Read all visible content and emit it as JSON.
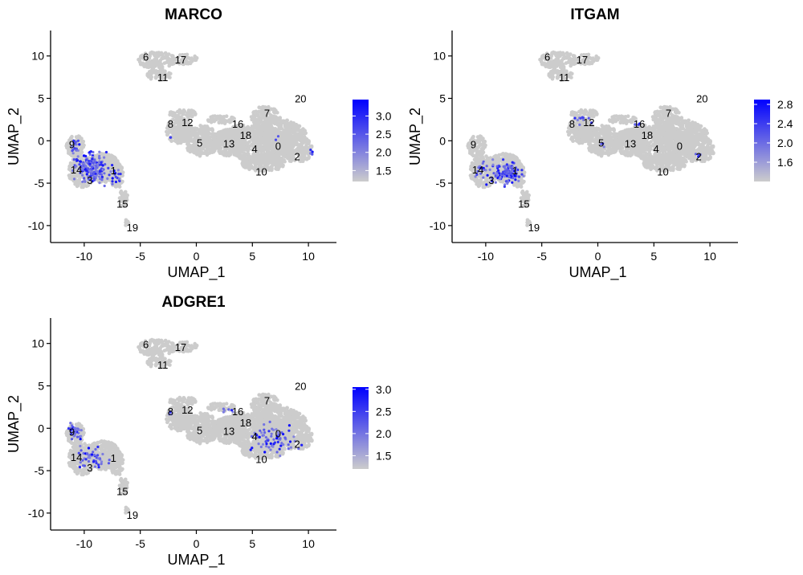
{
  "colors": {
    "low": "#cccccc",
    "high": "#0000ff",
    "axis": "#000000",
    "background": "#ffffff"
  },
  "chart_data": [
    {
      "type": "scatter",
      "title": "MARCO",
      "xlabel": "UMAP_1",
      "ylabel": "UMAP_2",
      "xlim": [
        -13,
        12.5
      ],
      "ylim": [
        -12,
        13
      ],
      "xticks": [
        -10,
        -5,
        0,
        5,
        10
      ],
      "yticks": [
        -10,
        -5,
        0,
        5,
        10
      ],
      "colorbar": {
        "min": 1.2,
        "max": 3.45,
        "ticks": [
          1.5,
          2.0,
          2.5,
          3.0
        ]
      },
      "cluster_labels": [
        {
          "label": "6",
          "x": -4.5,
          "y": 9.9
        },
        {
          "label": "17",
          "x": -1.4,
          "y": 9.6
        },
        {
          "label": "11",
          "x": -3.0,
          "y": 7.5
        },
        {
          "label": "20",
          "x": 9.3,
          "y": 5.0
        },
        {
          "label": "7",
          "x": 6.3,
          "y": 3.3
        },
        {
          "label": "8",
          "x": -2.3,
          "y": 2.0
        },
        {
          "label": "12",
          "x": -0.8,
          "y": 2.2
        },
        {
          "label": "16",
          "x": 3.7,
          "y": 2.0
        },
        {
          "label": "18",
          "x": 4.4,
          "y": 0.7
        },
        {
          "label": "5",
          "x": 0.3,
          "y": -0.2
        },
        {
          "label": "13",
          "x": 2.9,
          "y": -0.3
        },
        {
          "label": "4",
          "x": 5.2,
          "y": -0.9
        },
        {
          "label": "0",
          "x": 7.3,
          "y": -0.6
        },
        {
          "label": "2",
          "x": 9.0,
          "y": -1.8
        },
        {
          "label": "10",
          "x": 5.8,
          "y": -3.6
        },
        {
          "label": "9",
          "x": -11.1,
          "y": -0.4
        },
        {
          "label": "14",
          "x": -10.7,
          "y": -3.4
        },
        {
          "label": "3",
          "x": -9.5,
          "y": -4.6
        },
        {
          "label": "1",
          "x": -7.4,
          "y": -3.5
        },
        {
          "label": "15",
          "x": -6.6,
          "y": -7.4
        },
        {
          "label": "19",
          "x": -5.7,
          "y": -10.2
        }
      ]
    },
    {
      "type": "scatter",
      "title": "ITGAM",
      "xlabel": "UMAP_1",
      "ylabel": "UMAP_2",
      "xlim": [
        -13,
        12.5
      ],
      "ylim": [
        -12,
        13
      ],
      "xticks": [
        -10,
        -5,
        0,
        5,
        10
      ],
      "yticks": [
        -10,
        -5,
        0,
        5,
        10
      ],
      "colorbar": {
        "min": 1.2,
        "max": 2.9,
        "ticks": [
          1.6,
          2.0,
          2.4,
          2.8
        ]
      },
      "cluster_labels": [
        {
          "label": "6",
          "x": -4.5,
          "y": 9.9
        },
        {
          "label": "17",
          "x": -1.4,
          "y": 9.6
        },
        {
          "label": "11",
          "x": -3.0,
          "y": 7.5
        },
        {
          "label": "20",
          "x": 9.3,
          "y": 5.0
        },
        {
          "label": "7",
          "x": 6.3,
          "y": 3.3
        },
        {
          "label": "8",
          "x": -2.3,
          "y": 2.0
        },
        {
          "label": "12",
          "x": -0.8,
          "y": 2.2
        },
        {
          "label": "16",
          "x": 3.7,
          "y": 2.0
        },
        {
          "label": "18",
          "x": 4.4,
          "y": 0.7
        },
        {
          "label": "5",
          "x": 0.3,
          "y": -0.2
        },
        {
          "label": "13",
          "x": 2.9,
          "y": -0.3
        },
        {
          "label": "4",
          "x": 5.2,
          "y": -0.9
        },
        {
          "label": "0",
          "x": 7.3,
          "y": -0.6
        },
        {
          "label": "2",
          "x": 9.0,
          "y": -1.8
        },
        {
          "label": "10",
          "x": 5.8,
          "y": -3.6
        },
        {
          "label": "9",
          "x": -11.1,
          "y": -0.4
        },
        {
          "label": "14",
          "x": -10.7,
          "y": -3.4
        },
        {
          "label": "3",
          "x": -9.5,
          "y": -4.6
        },
        {
          "label": "1",
          "x": -7.4,
          "y": -3.5
        },
        {
          "label": "15",
          "x": -6.6,
          "y": -7.4
        },
        {
          "label": "19",
          "x": -5.7,
          "y": -10.2
        }
      ]
    },
    {
      "type": "scatter",
      "title": "ADGRE1",
      "xlabel": "UMAP_1",
      "ylabel": "UMAP_2",
      "xlim": [
        -13,
        12.5
      ],
      "ylim": [
        -12,
        13
      ],
      "xticks": [
        -10,
        -5,
        0,
        5,
        10
      ],
      "yticks": [
        -10,
        -5,
        0,
        5,
        10
      ],
      "colorbar": {
        "min": 1.2,
        "max": 3.05,
        "ticks": [
          1.5,
          2.0,
          2.5,
          3.0
        ]
      },
      "cluster_labels": [
        {
          "label": "6",
          "x": -4.5,
          "y": 9.9
        },
        {
          "label": "17",
          "x": -1.4,
          "y": 9.6
        },
        {
          "label": "11",
          "x": -3.0,
          "y": 7.5
        },
        {
          "label": "20",
          "x": 9.3,
          "y": 5.0
        },
        {
          "label": "7",
          "x": 6.3,
          "y": 3.3
        },
        {
          "label": "8",
          "x": -2.3,
          "y": 2.0
        },
        {
          "label": "12",
          "x": -0.8,
          "y": 2.2
        },
        {
          "label": "16",
          "x": 3.7,
          "y": 2.0
        },
        {
          "label": "18",
          "x": 4.4,
          "y": 0.7
        },
        {
          "label": "5",
          "x": 0.3,
          "y": -0.2
        },
        {
          "label": "13",
          "x": 2.9,
          "y": -0.3
        },
        {
          "label": "4",
          "x": 5.2,
          "y": -0.9
        },
        {
          "label": "0",
          "x": 7.3,
          "y": -0.6
        },
        {
          "label": "2",
          "x": 9.0,
          "y": -1.8
        },
        {
          "label": "10",
          "x": 5.8,
          "y": -3.6
        },
        {
          "label": "9",
          "x": -11.1,
          "y": -0.4
        },
        {
          "label": "14",
          "x": -10.7,
          "y": -3.4
        },
        {
          "label": "3",
          "x": -9.5,
          "y": -4.6
        },
        {
          "label": "1",
          "x": -7.4,
          "y": -3.5
        },
        {
          "label": "15",
          "x": -6.6,
          "y": -7.4
        },
        {
          "label": "19",
          "x": -5.7,
          "y": -10.2
        }
      ]
    }
  ]
}
